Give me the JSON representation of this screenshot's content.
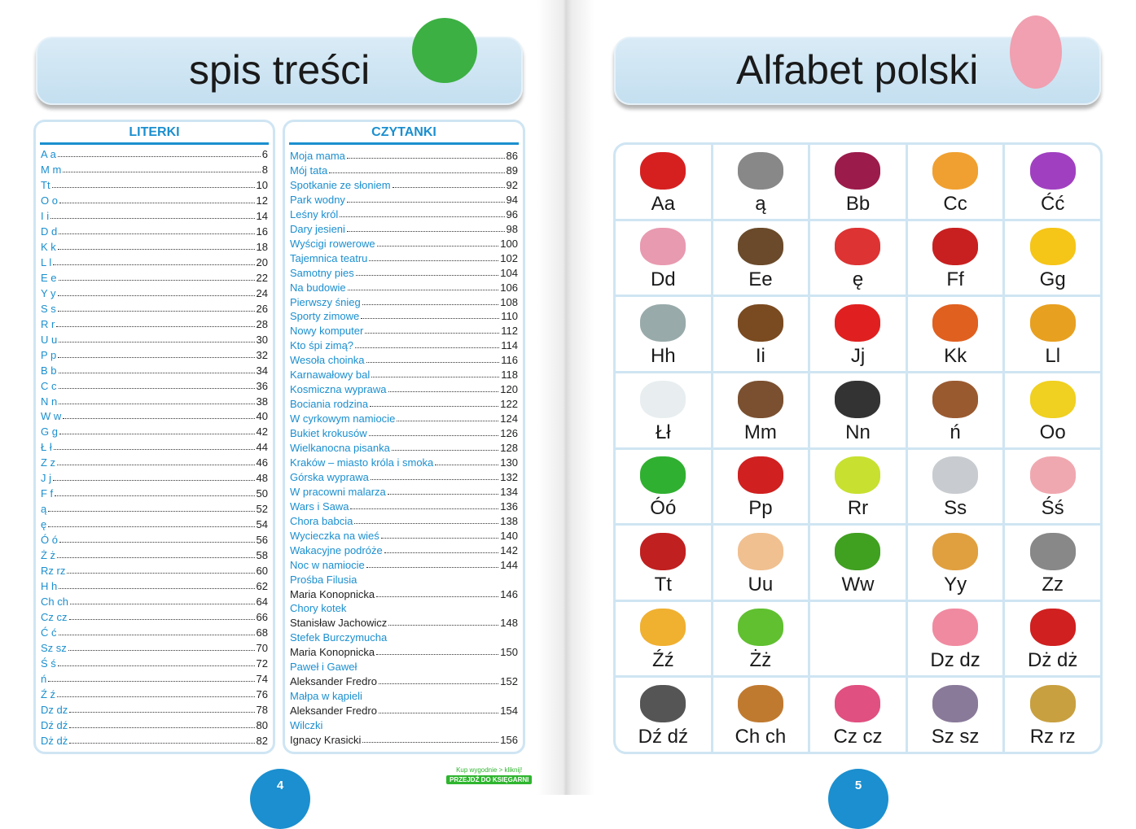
{
  "left_page": {
    "title": "spis treści",
    "page_number": "4",
    "literki": {
      "heading": "LITERKI",
      "items": [
        [
          "A a",
          "6"
        ],
        [
          "M m",
          "8"
        ],
        [
          "Tt",
          "10"
        ],
        [
          "O o",
          "12"
        ],
        [
          "I i",
          "14"
        ],
        [
          "D d",
          "16"
        ],
        [
          "K k",
          "18"
        ],
        [
          "L l",
          "20"
        ],
        [
          "E e",
          "22"
        ],
        [
          "Y y",
          "24"
        ],
        [
          "S s",
          "26"
        ],
        [
          "R r",
          "28"
        ],
        [
          "U u",
          "30"
        ],
        [
          "P p",
          "32"
        ],
        [
          "B b",
          "34"
        ],
        [
          "C c",
          "36"
        ],
        [
          "N n",
          "38"
        ],
        [
          "W w",
          "40"
        ],
        [
          "G g",
          "42"
        ],
        [
          "Ł ł",
          "44"
        ],
        [
          "Z z",
          "46"
        ],
        [
          "J j",
          "48"
        ],
        [
          "F f",
          "50"
        ],
        [
          "ą",
          "52"
        ],
        [
          "ę",
          "54"
        ],
        [
          "Ó ó",
          "56"
        ],
        [
          "Ż ż",
          "58"
        ],
        [
          "Rz rz",
          "60"
        ],
        [
          "H h",
          "62"
        ],
        [
          "Ch ch",
          "64"
        ],
        [
          "Cz cz",
          "66"
        ],
        [
          "Ć ć",
          "68"
        ],
        [
          "Sz sz",
          "70"
        ],
        [
          "Ś ś",
          "72"
        ],
        [
          "ń",
          "74"
        ],
        [
          "Ź ź",
          "76"
        ],
        [
          "Dz dz",
          "78"
        ],
        [
          "Dź dź",
          "80"
        ],
        [
          "Dż dż",
          "82"
        ]
      ]
    },
    "czytanki": {
      "heading": "CZYTANKI",
      "items": [
        {
          "t": "Moja mama",
          "p": "86"
        },
        {
          "t": "Mój tata",
          "p": "89"
        },
        {
          "t": "Spotkanie ze słoniem",
          "p": "92"
        },
        {
          "t": "Park wodny",
          "p": "94"
        },
        {
          "t": "Leśny król",
          "p": "96"
        },
        {
          "t": "Dary jesieni",
          "p": "98"
        },
        {
          "t": "Wyścigi rowerowe",
          "p": "100"
        },
        {
          "t": "Tajemnica teatru",
          "p": "102"
        },
        {
          "t": "Samotny pies",
          "p": "104"
        },
        {
          "t": "Na budowie",
          "p": "106"
        },
        {
          "t": "Pierwszy śnieg",
          "p": "108"
        },
        {
          "t": "Sporty zimowe",
          "p": "110"
        },
        {
          "t": "Nowy komputer",
          "p": "112"
        },
        {
          "t": "Kto śpi zimą?",
          "p": "114"
        },
        {
          "t": "Wesoła choinka",
          "p": "116"
        },
        {
          "t": "Karnawałowy bal",
          "p": "118"
        },
        {
          "t": "Kosmiczna wyprawa",
          "p": "120"
        },
        {
          "t": "Bociania rodzina",
          "p": "122"
        },
        {
          "t": "W cyrkowym namiocie",
          "p": "124"
        },
        {
          "t": "Bukiet krokusów",
          "p": "126"
        },
        {
          "t": "Wielkanocna pisanka",
          "p": "128"
        },
        {
          "t": "Kraków – miasto króla i smoka",
          "p": "130"
        },
        {
          "t": "Górska wyprawa",
          "p": "132"
        },
        {
          "t": "W pracowni malarza",
          "p": "134"
        },
        {
          "t": "Wars i Sawa",
          "p": "136"
        },
        {
          "t": "Chora babcia",
          "p": "138"
        },
        {
          "t": "Wycieczka na wieś",
          "p": "140"
        },
        {
          "t": "Wakacyjne podróże",
          "p": "142"
        },
        {
          "t": "Noc w namiocie",
          "p": "144"
        },
        {
          "t": "Prośba Filusia"
        },
        {
          "t": "Maria Konopnicka",
          "p": "146",
          "author": true
        },
        {
          "t": "Chory kotek"
        },
        {
          "t": "Stanisław Jachowicz",
          "p": "148",
          "author": true
        },
        {
          "t": "Stefek Burczymucha"
        },
        {
          "t": "Maria Konopnicka",
          "p": "150",
          "author": true
        },
        {
          "t": "Paweł i Gaweł"
        },
        {
          "t": "Aleksander Fredro",
          "p": "152",
          "author": true
        },
        {
          "t": "Małpa w kąpieli"
        },
        {
          "t": "Aleksander Fredro",
          "p": "154",
          "author": true
        },
        {
          "t": "Wilczki"
        },
        {
          "t": "Ignacy Krasicki",
          "p": "156",
          "author": true
        }
      ]
    },
    "promo": {
      "text": "Kup wygodnie > kliknij!",
      "button": "PRZEJDŹ DO KSIĘGARNI"
    }
  },
  "right_page": {
    "title": "Alfabet polski",
    "page_number": "5",
    "cells": [
      {
        "l": "Aa",
        "icon": "car",
        "c": "#d62020"
      },
      {
        "l": "ą",
        "icon": "spider",
        "c": "#888"
      },
      {
        "l": "Bb",
        "icon": "beet",
        "c": "#9b1b4b"
      },
      {
        "l": "Cc",
        "icon": "onion",
        "c": "#f0a030"
      },
      {
        "l": "Ćć",
        "icon": "butterfly",
        "c": "#a040c0"
      },
      {
        "l": "Dd",
        "icon": "house",
        "c": "#e89ab0"
      },
      {
        "l": "Ee",
        "icon": "tv",
        "c": "#6a4a2a"
      },
      {
        "l": "ę",
        "icon": "drum",
        "c": "#d33"
      },
      {
        "l": "Ff",
        "icon": "armchair",
        "c": "#c82020"
      },
      {
        "l": "Gg",
        "icon": "pear",
        "c": "#f5c518"
      },
      {
        "l": "Hh",
        "icon": "hippo",
        "c": "#9aa"
      },
      {
        "l": "Ii",
        "icon": "turkey",
        "c": "#7a4a20"
      },
      {
        "l": "Jj",
        "icon": "apple",
        "c": "#e02020"
      },
      {
        "l": "Kk",
        "icon": "rooster",
        "c": "#e06020"
      },
      {
        "l": "Ll",
        "icon": "lion",
        "c": "#e8a020"
      },
      {
        "l": "Łł",
        "icon": "swan",
        "c": "#e8eef0"
      },
      {
        "l": "Mm",
        "icon": "monkey",
        "c": "#7a5030"
      },
      {
        "l": "Nn",
        "icon": "music-note",
        "c": "#333"
      },
      {
        "l": "ń",
        "icon": "horse",
        "c": "#9a5a30"
      },
      {
        "l": "Oo",
        "icon": "wasp",
        "c": "#f0d020"
      },
      {
        "l": "Óó",
        "icon": "eight",
        "c": "#30b030"
      },
      {
        "l": "Pp",
        "icon": "parrot",
        "c": "#d02020"
      },
      {
        "l": "Rr",
        "icon": "fish",
        "c": "#c8e030"
      },
      {
        "l": "Ss",
        "icon": "airplane",
        "c": "#c8ccd0"
      },
      {
        "l": "Śś",
        "icon": "pig",
        "c": "#f0a8b0"
      },
      {
        "l": "Tt",
        "icon": "tractor",
        "c": "#c02020"
      },
      {
        "l": "Uu",
        "icon": "ear",
        "c": "#f0c090"
      },
      {
        "l": "Ww",
        "icon": "snake",
        "c": "#40a020"
      },
      {
        "l": "Yy",
        "icon": "cottage",
        "c": "#e0a040"
      },
      {
        "l": "Zz",
        "icon": "zebra",
        "c": "#888"
      },
      {
        "l": "Źź",
        "icon": "foal",
        "c": "#f0b030"
      },
      {
        "l": "Żż",
        "icon": "frog",
        "c": "#60c030"
      },
      {
        "l": "",
        "icon": "",
        "c": ""
      },
      {
        "l": "Dz dz",
        "icon": "jug",
        "c": "#f08aa0"
      },
      {
        "l": "Dż dż",
        "icon": "jam",
        "c": "#d02020"
      },
      {
        "l": "Dź dź",
        "icon": "chopsticks",
        "c": "#555"
      },
      {
        "l": "Ch ch",
        "icon": "bread",
        "c": "#c07a30"
      },
      {
        "l": "Cz cz",
        "icon": "hat",
        "c": "#e05080"
      },
      {
        "l": "Sz sz",
        "icon": "mouse",
        "c": "#8a7a9a"
      },
      {
        "l": "Rz rz",
        "icon": "radish",
        "c": "#c8a040"
      }
    ]
  }
}
